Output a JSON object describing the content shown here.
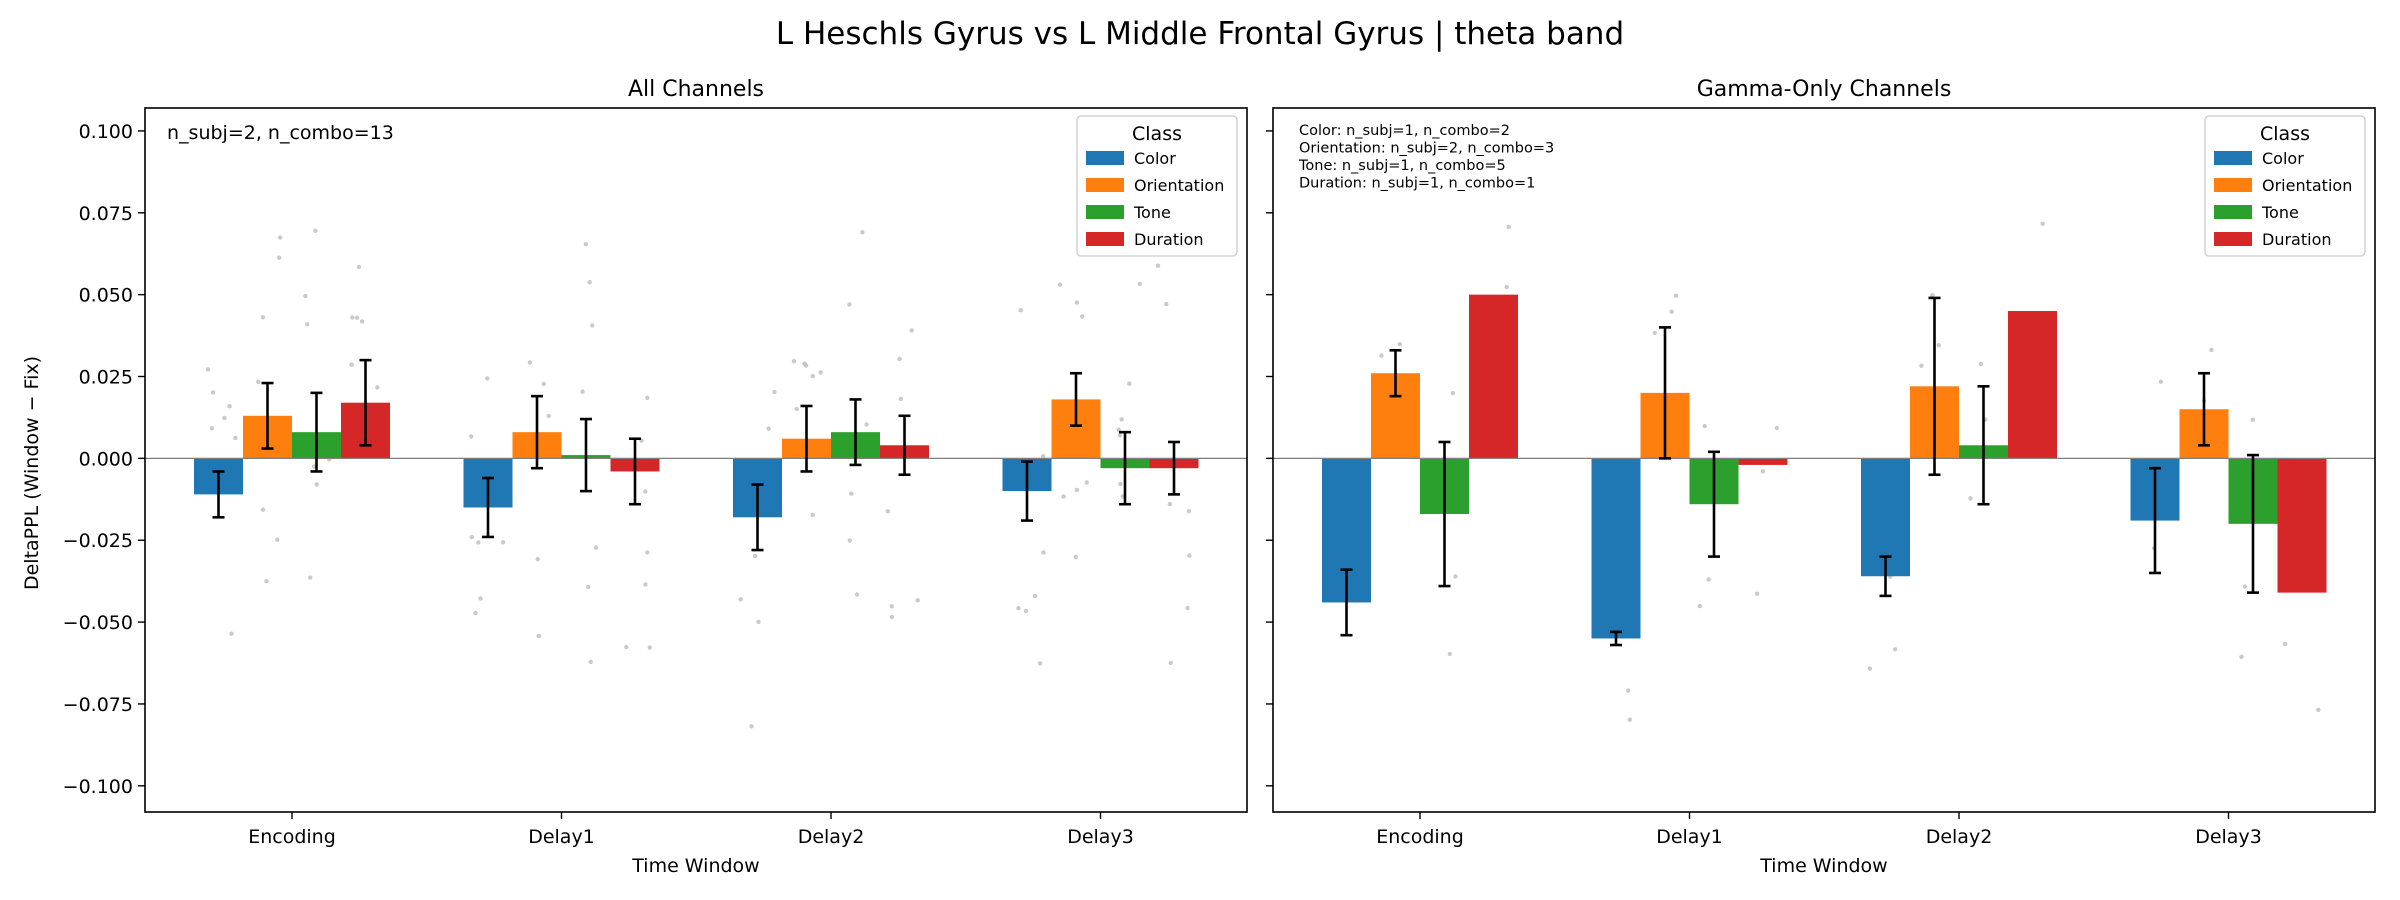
{
  "suptitle": "L Heschls Gyrus vs L Middle Frontal Gyrus  |  theta band",
  "ylabel": "DeltaPPL (Window − Fix)",
  "colors": {
    "Color": "#1f77b4",
    "Orientation": "#ff7f0e",
    "Tone": "#2ca02c",
    "Duration": "#d62728"
  },
  "chart_data": [
    {
      "type": "bar",
      "title": "All Channels",
      "xlabel": "Time Window",
      "ylabel": "DeltaPPL (Window − Fix)",
      "ylim": [
        -0.108,
        0.107
      ],
      "yticks": [
        "−0.100",
        "−0.075",
        "−0.050",
        "−0.025",
        "0.000",
        "0.025",
        "0.050",
        "0.075",
        "0.100"
      ],
      "ytick_values": [
        -0.1,
        -0.075,
        -0.05,
        -0.025,
        0.0,
        0.025,
        0.05,
        0.075,
        0.1
      ],
      "categories": [
        "Encoding",
        "Delay1",
        "Delay2",
        "Delay3"
      ],
      "legend": {
        "title": "Class",
        "position": "upper right"
      },
      "annotation": [
        "n_subj=2, n_combo=13"
      ],
      "annotation_size": "large",
      "series": [
        {
          "name": "Color",
          "values": [
            -0.011,
            -0.015,
            -0.018,
            -0.01
          ],
          "err": [
            0.007,
            0.009,
            0.01,
            0.009
          ]
        },
        {
          "name": "Orientation",
          "values": [
            0.013,
            0.008,
            0.006,
            0.018
          ],
          "err": [
            0.01,
            0.011,
            0.01,
            0.008
          ]
        },
        {
          "name": "Tone",
          "values": [
            0.008,
            0.001,
            0.008,
            -0.003
          ],
          "err": [
            0.012,
            0.011,
            0.01,
            0.011
          ]
        },
        {
          "name": "Duration",
          "values": [
            0.017,
            -0.004,
            0.004,
            -0.003
          ],
          "err": [
            0.013,
            0.01,
            0.009,
            0.008
          ]
        }
      ]
    },
    {
      "type": "bar",
      "title": "Gamma-Only Channels",
      "xlabel": "Time Window",
      "ylim": [
        -0.108,
        0.107
      ],
      "categories": [
        "Encoding",
        "Delay1",
        "Delay2",
        "Delay3"
      ],
      "legend": {
        "title": "Class",
        "position": "upper right"
      },
      "annotation": [
        "Color: n_subj=1, n_combo=2",
        "Orientation: n_subj=2, n_combo=3",
        "Tone: n_subj=1, n_combo=5",
        "Duration: n_subj=1, n_combo=1"
      ],
      "annotation_size": "small",
      "series": [
        {
          "name": "Color",
          "values": [
            -0.044,
            -0.055,
            -0.036,
            -0.019
          ],
          "err": [
            0.01,
            0.002,
            0.006,
            0.016
          ]
        },
        {
          "name": "Orientation",
          "values": [
            0.026,
            0.02,
            0.022,
            0.015
          ],
          "err": [
            0.007,
            0.02,
            0.027,
            0.011
          ]
        },
        {
          "name": "Tone",
          "values": [
            -0.017,
            -0.014,
            0.004,
            -0.02
          ],
          "err": [
            0.022,
            0.016,
            0.018,
            0.021
          ]
        },
        {
          "name": "Duration",
          "values": [
            0.05,
            -0.002,
            0.045,
            -0.041
          ],
          "err": [
            0,
            0,
            0,
            0
          ]
        }
      ]
    }
  ]
}
